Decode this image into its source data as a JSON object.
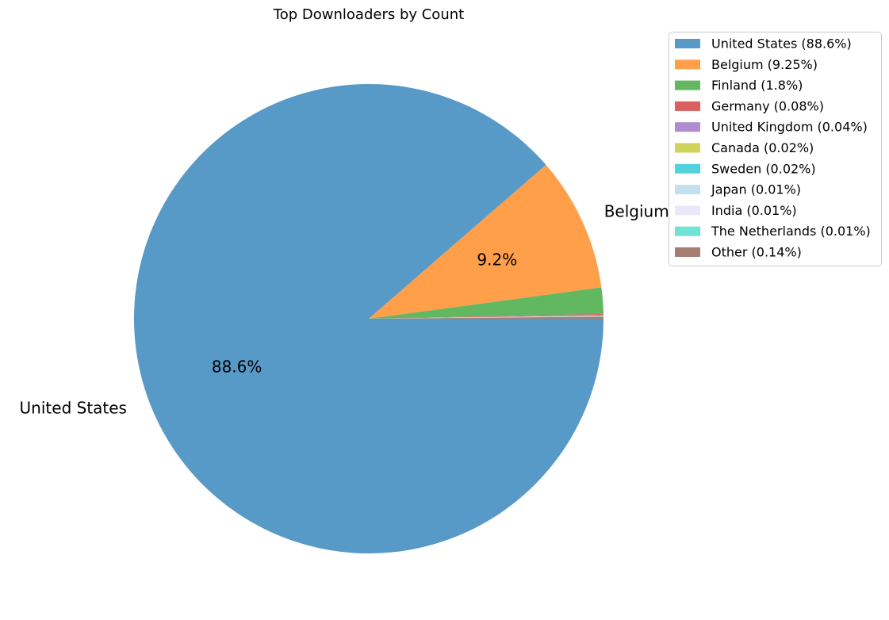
{
  "chart_data": {
    "type": "pie",
    "title": "Top Downloaders by Count",
    "start_angle_deg": 0,
    "direction": "clockwise",
    "legend_position": "top-right",
    "slices": [
      {
        "name": "United States",
        "value": 88.6,
        "legend": "United States (88.6%)",
        "color": "#5799c7",
        "label": "United States",
        "pct_label": "88.6%"
      },
      {
        "name": "Belgium",
        "value": 9.25,
        "legend": "Belgium (9.25%)",
        "color": "#ff9f4a",
        "label": "Belgium",
        "pct_label": "9.2%"
      },
      {
        "name": "Finland",
        "value": 1.8,
        "legend": "Finland (1.8%)",
        "color": "#61b861",
        "label": "",
        "pct_label": ""
      },
      {
        "name": "Germany",
        "value": 0.08,
        "legend": "Germany (0.08%)",
        "color": "#dc5f5f",
        "label": "",
        "pct_label": ""
      },
      {
        "name": "United Kingdom",
        "value": 0.04,
        "legend": "United Kingdom (0.04%)",
        "color": "#b08cd0",
        "label": "",
        "pct_label": ""
      },
      {
        "name": "Canada",
        "value": 0.02,
        "legend": "Canada (0.02%)",
        "color": "#cfd25b",
        "label": "",
        "pct_label": ""
      },
      {
        "name": "Sweden",
        "value": 0.02,
        "legend": "Sweden (0.02%)",
        "color": "#52d3db",
        "label": "",
        "pct_label": ""
      },
      {
        "name": "Japan",
        "value": 0.01,
        "legend": "Japan (0.01%)",
        "color": "#c2e1ee",
        "label": "",
        "pct_label": ""
      },
      {
        "name": "India",
        "value": 0.01,
        "legend": "India (0.01%)",
        "color": "#e8e8fa",
        "label": "",
        "pct_label": ""
      },
      {
        "name": "The Netherlands",
        "value": 0.01,
        "legend": "The Netherlands (0.01%)",
        "color": "#6fe3d5",
        "label": "",
        "pct_label": ""
      },
      {
        "name": "Other",
        "value": 0.14,
        "legend": "Other (0.14%)",
        "color": "#a67f73",
        "label": "",
        "pct_label": ""
      }
    ]
  }
}
